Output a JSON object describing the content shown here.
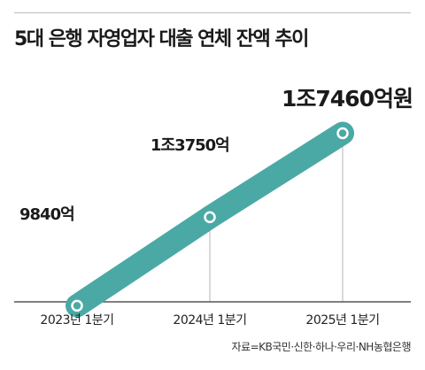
{
  "chart_data": {
    "type": "line",
    "title": "5대 은행 자영업자 대출 연체 잔액 추이",
    "categories": [
      "2023년 1분기",
      "2024년 1분기",
      "2025년 1분기"
    ],
    "values": [
      9840,
      13750,
      17460
    ],
    "value_labels": [
      "9840억",
      "1조3750억",
      "1조7460억원"
    ],
    "unit": "억원",
    "ylim": [
      7000,
      21000
    ],
    "grid": false,
    "legend": "none",
    "source": "자료=KB국민·신한·하나·우리·NH농협은행"
  },
  "colors": {
    "line": "#4ba9a5",
    "marker_fill": "#4ba9a5",
    "marker_stroke": "#ffffff",
    "guide": "#b5b5b5",
    "axis": "#555555"
  }
}
